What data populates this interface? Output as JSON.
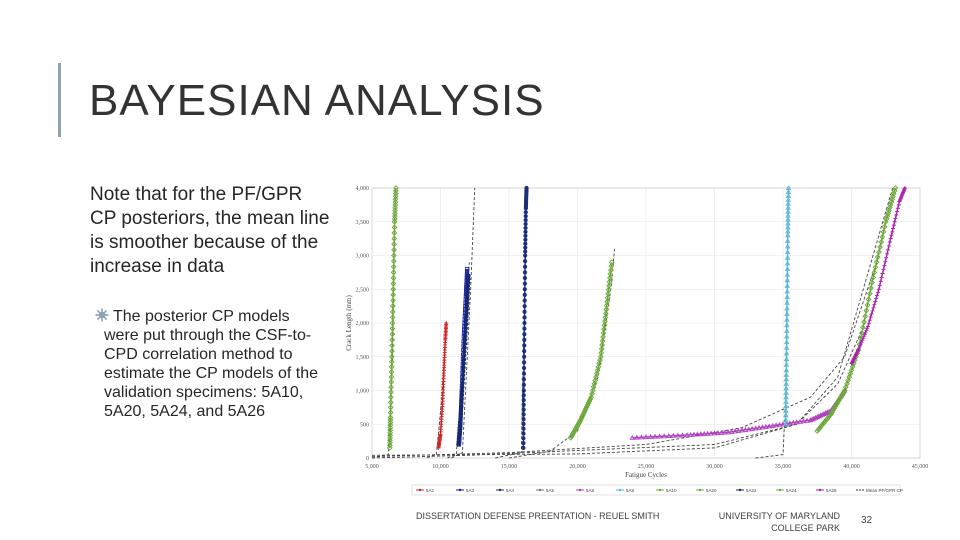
{
  "slide": {
    "title": "BAYESIAN ANALYSIS",
    "body_text": "Note that for the PF/GPR CP posteriors, the mean line is smoother because of the increase in data",
    "bullet_text": "The posterior CP models were put through the CSF-to-CPD correlation method to estimate the CP models of the validation specimens: 5A10, 5A20, 5A24, and 5A26",
    "footer_left": "DISSERTATION DEFENSE PREENTATION - REUEL SMITH",
    "footer_right": "UNIVERSITY OF MARYLAND COLLEGE PARK",
    "page_number": "32",
    "accent_color": "#8fa2b2",
    "bullet_icon": "gear-bullet-icon",
    "bullet_color": "#8fa2b2"
  },
  "chart_data": {
    "type": "line",
    "xlabel": "Fatigue Cycles",
    "ylabel": "Crack Length (mm)",
    "xlim": [
      5000,
      45000
    ],
    "ylim": [
      0,
      4000
    ],
    "x_ticks": [
      "5,000",
      "10,000",
      "15,000",
      "20,000",
      "25,000",
      "30,000",
      "35,000",
      "40,000",
      "45,000"
    ],
    "x_tick_values": [
      5000,
      10000,
      15000,
      20000,
      25000,
      30000,
      35000,
      40000,
      45000
    ],
    "y_ticks": [
      "0",
      "500",
      "1,000",
      "1,500",
      "2,000",
      "2,500",
      "3,000",
      "3,500",
      "4,000"
    ],
    "y_tick_values": [
      0,
      500,
      1000,
      1500,
      2000,
      2500,
      3000,
      3500,
      4000
    ],
    "grid": true,
    "legend_position": "bottom",
    "series": [
      {
        "name": "5A2",
        "color": "#cc2222",
        "marker": "plus",
        "x": [
          9850,
          10000,
          10150,
          10250,
          10350,
          10420
        ],
        "y": [
          150,
          350,
          800,
          1300,
          1750,
          2000
        ]
      },
      {
        "name": "5A3",
        "color": "#1b1bb0",
        "marker": "square",
        "x": [
          11350,
          11450,
          11550,
          11700,
          11850,
          11950
        ],
        "y": [
          200,
          500,
          1000,
          1800,
          2400,
          2800
        ]
      },
      {
        "name": "5A4",
        "color": "#1c2f7a",
        "marker": "star",
        "x": [
          16050,
          16080,
          16130,
          16180,
          16230,
          16280
        ],
        "y": [
          150,
          1000,
          2000,
          3000,
          3700,
          4000
        ]
      },
      {
        "name": "5A5",
        "color": "#777777",
        "marker": "circle",
        "x": [],
        "y": []
      },
      {
        "name": "5A8",
        "color": "#b040c0",
        "marker": "triangle",
        "x": [
          24000,
          28000,
          31000,
          34000,
          37000,
          38500,
          39500
        ],
        "y": [
          300,
          340,
          380,
          470,
          560,
          700,
          1000
        ]
      },
      {
        "name": "5A9",
        "color": "#5ab7d6",
        "marker": "triangle",
        "x": [
          35200,
          35250,
          35300,
          35350,
          35400
        ],
        "y": [
          500,
          1300,
          2300,
          3300,
          4000
        ]
      },
      {
        "name": "5A10",
        "color": "#6ca83a",
        "marker": "diamond",
        "x": [
          6300,
          6350,
          6450,
          6550,
          6650,
          6750
        ],
        "y": [
          150,
          600,
          1500,
          2500,
          3500,
          4000
        ]
      },
      {
        "name": "5A20",
        "color": "#6ca83a",
        "marker": "diamond",
        "x": [
          19500,
          20200,
          21000,
          21700,
          22100,
          22500
        ],
        "y": [
          300,
          550,
          900,
          1500,
          2200,
          2900
        ]
      },
      {
        "name": "5A22",
        "color": "#172a6a",
        "marker": "pentagram",
        "x": [
          11300,
          11500,
          11700,
          11900,
          12050
        ],
        "y": [
          200,
          700,
          1400,
          2100,
          2700
        ]
      },
      {
        "name": "5A24",
        "color": "#6ca83a",
        "marker": "diamond",
        "x": [
          37500,
          38500,
          39500,
          40500,
          41500,
          42500,
          43200
        ],
        "y": [
          400,
          650,
          1000,
          1600,
          2600,
          3500,
          4000
        ]
      },
      {
        "name": "5A26",
        "color": "#aa22aa",
        "marker": "plus",
        "x": [
          40000,
          40500,
          41200,
          42000,
          42800,
          43500,
          43900
        ],
        "y": [
          1400,
          1600,
          1950,
          2500,
          3200,
          3800,
          4000
        ]
      },
      {
        "name": "Mean PF/GPR CP",
        "color": "#333333",
        "marker": "dashed",
        "x": [],
        "y": []
      }
    ],
    "mean_lines": [
      {
        "x": [
          5000,
          6200,
          6500,
          6700
        ],
        "y": [
          0,
          50,
          1500,
          4000
        ]
      },
      {
        "x": [
          9000,
          9700,
          10100,
          10400
        ],
        "y": [
          0,
          50,
          900,
          2000
        ]
      },
      {
        "x": [
          10500,
          11150,
          11700,
          12100
        ],
        "y": [
          0,
          50,
          1500,
          2900
        ]
      },
      {
        "x": [
          10800,
          11600,
          12200,
          12500
        ],
        "y": [
          0,
          80,
          2500,
          4000
        ]
      },
      {
        "x": [
          14000,
          15900,
          16100,
          16300
        ],
        "y": [
          0,
          80,
          2000,
          4000
        ]
      },
      {
        "x": [
          15000,
          18000,
          20000,
          21500,
          22500,
          22700
        ],
        "y": [
          0,
          100,
          400,
          1200,
          2600,
          3100
        ]
      },
      {
        "x": [
          33000,
          35000,
          35200,
          35300,
          35400
        ],
        "y": [
          0,
          50,
          900,
          2500,
          4000
        ]
      },
      {
        "x": [
          5000,
          20000,
          30000,
          36000,
          39000,
          41000,
          43000
        ],
        "y": [
          40,
          60,
          150,
          500,
          1200,
          2600,
          4000
        ]
      },
      {
        "x": [
          5000,
          15000,
          25000,
          32000,
          37000,
          39500,
          42000
        ],
        "y": [
          20,
          80,
          200,
          450,
          900,
          1500,
          3000
        ]
      },
      {
        "x": [
          5000,
          12000,
          30000,
          36000,
          39000,
          41000
        ],
        "y": [
          0,
          40,
          200,
          500,
          1100,
          2000
        ]
      }
    ]
  }
}
